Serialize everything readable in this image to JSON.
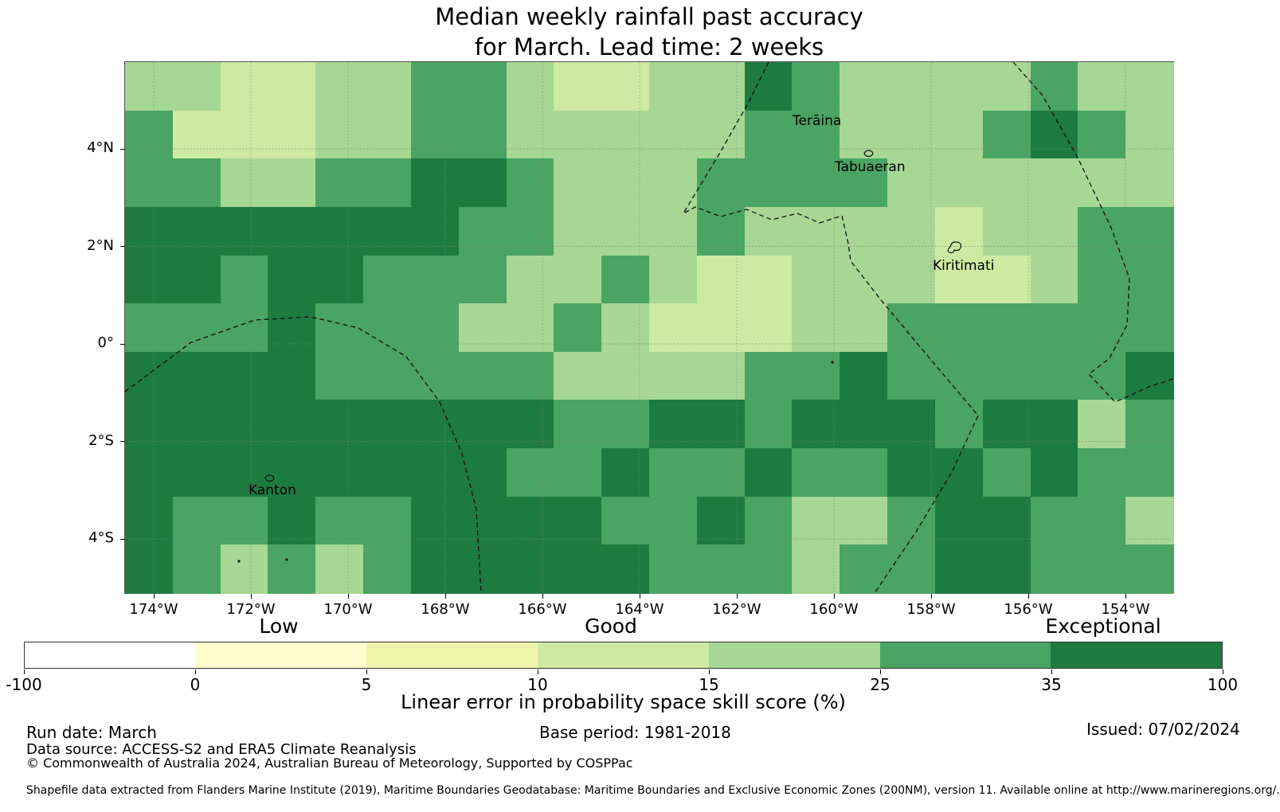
{
  "title": {
    "line1": "Median weekly rainfall past accuracy",
    "line2": "for March. Lead time: 2 weeks"
  },
  "chart_data": {
    "type": "heatmap",
    "title": "Median weekly rainfall past accuracy for March. Lead time: 2 weeks",
    "x_ticks": [
      "174°W",
      "172°W",
      "170°W",
      "168°W",
      "166°W",
      "164°W",
      "162°W",
      "160°W",
      "158°W",
      "156°W",
      "154°W"
    ],
    "y_ticks": [
      "4°N",
      "2°N",
      "0°",
      "2°S",
      "4°S"
    ],
    "grid_on": true,
    "value_bins": {
      "P": "10-15 %",
      "L": "15-25 %",
      "M": "25-35 %",
      "D": "35-100 %"
    },
    "palette": {
      "P": "#cde9a2",
      "L": "#a7d795",
      "M": "#4aa463",
      "D": "#1e7b40"
    },
    "grid": [
      "LLPPLLMMLPPLLDMLLLLMLL",
      "MPPPLLMMLLLLLMMLLLMDML",
      "MMLLMMDDMLLLMMMMLLLLLL",
      "DDDDDDDMMLLLMLLLLPLLMM",
      "DDMDDMMMLLMLPPLLLPPLMM",
      "MMMDMMMLLMLPPPLLMMMMMM",
      "DDDDMMMMMLLLLMMDMMMMMD",
      "DDDDDDDDDMMDDMDDDMDDLM",
      "DDDDDDDDMMDMMDMMDDMDMM",
      "DMMDMMDDDDMMDMLLMDDMML",
      "DMLMLMDDDDDMMMLMMDDMMM"
    ],
    "islands": [
      {
        "label": "Terāina",
        "lx": 838,
        "ly": 64
      },
      {
        "label": "Tabuaeran",
        "lx": 891,
        "ly": 122,
        "marker": {
          "type": "islet",
          "x": 928,
          "y": 114
        }
      },
      {
        "label": "Kiritimati",
        "lx": 1014,
        "ly": 246,
        "marker": {
          "type": "atoll",
          "x": 1036,
          "y": 232
        }
      },
      {
        "label": "Kanton",
        "lx": 155,
        "ly": 528,
        "marker": {
          "type": "islet",
          "x": 176,
          "y": 522
        }
      }
    ],
    "small_marks": [
      [
        143,
        627
      ],
      [
        203,
        625
      ],
      [
        888,
        377
      ]
    ],
    "eez_boundaries": [
      {
        "name": "line-islands-west",
        "points": [
          [
            808,
            0
          ],
          [
            782,
            52
          ],
          [
            748,
            112
          ],
          [
            701,
            190
          ],
          [
            716,
            182
          ],
          [
            748,
            194
          ],
          [
            780,
            185
          ],
          [
            812,
            198
          ],
          [
            844,
            190
          ],
          [
            872,
            202
          ],
          [
            900,
            193
          ],
          [
            908,
            228
          ],
          [
            911,
            250
          ],
          [
            950,
            300
          ],
          [
            1000,
            360
          ],
          [
            1071,
            444
          ],
          [
            1038,
            515
          ],
          [
            993,
            590
          ],
          [
            941,
            667
          ]
        ]
      },
      {
        "name": "line-islands-east",
        "points": [
          [
            1115,
            0
          ],
          [
            1152,
            42
          ],
          [
            1196,
            120
          ],
          [
            1238,
            208
          ],
          [
            1261,
            272
          ],
          [
            1258,
            330
          ],
          [
            1236,
            372
          ],
          [
            1210,
            392
          ],
          [
            1243,
            427
          ],
          [
            1285,
            408
          ],
          [
            1316,
            398
          ]
        ]
      },
      {
        "name": "phoenix-islands",
        "points": [
          [
            0,
            414
          ],
          [
            83,
            352
          ],
          [
            163,
            324
          ],
          [
            233,
            320
          ],
          [
            293,
            334
          ],
          [
            353,
            370
          ],
          [
            395,
            427
          ],
          [
            423,
            492
          ],
          [
            441,
            562
          ],
          [
            447,
            667
          ]
        ]
      }
    ]
  },
  "colorbar": {
    "ticks": [
      "-100",
      "0",
      "5",
      "10",
      "15",
      "25",
      "35",
      "100"
    ],
    "segments": [
      "#ffffff",
      "#fdfdce",
      "#eef5ad",
      "#cde9a2",
      "#a7d795",
      "#4aa463",
      "#1e7b40"
    ],
    "low_label": "Low",
    "good_label": "Good",
    "exceptional_label": "Exceptional",
    "axis_label": "Linear error in probability space skill score (%)"
  },
  "footer": {
    "run_date": "Run date: March",
    "base_period": "Base period: 1981-2018",
    "issued": "Issued: 07/02/2024",
    "data_source": "Data source: ACCESS-S2 and ERA5 Climate Reanalysis",
    "copyright": "© Commonwealth of Australia 2024, Australian Bureau of Meteorology, Supported by COSPPac",
    "shapefile": "Shapefile data extracted from Flanders Marine Institute (2019), Maritime Boundaries Geodatabase: Maritime Boundaries and Exclusive Economic Zones (200NM), version 11. Available online at http://www.marineregions.org/."
  }
}
